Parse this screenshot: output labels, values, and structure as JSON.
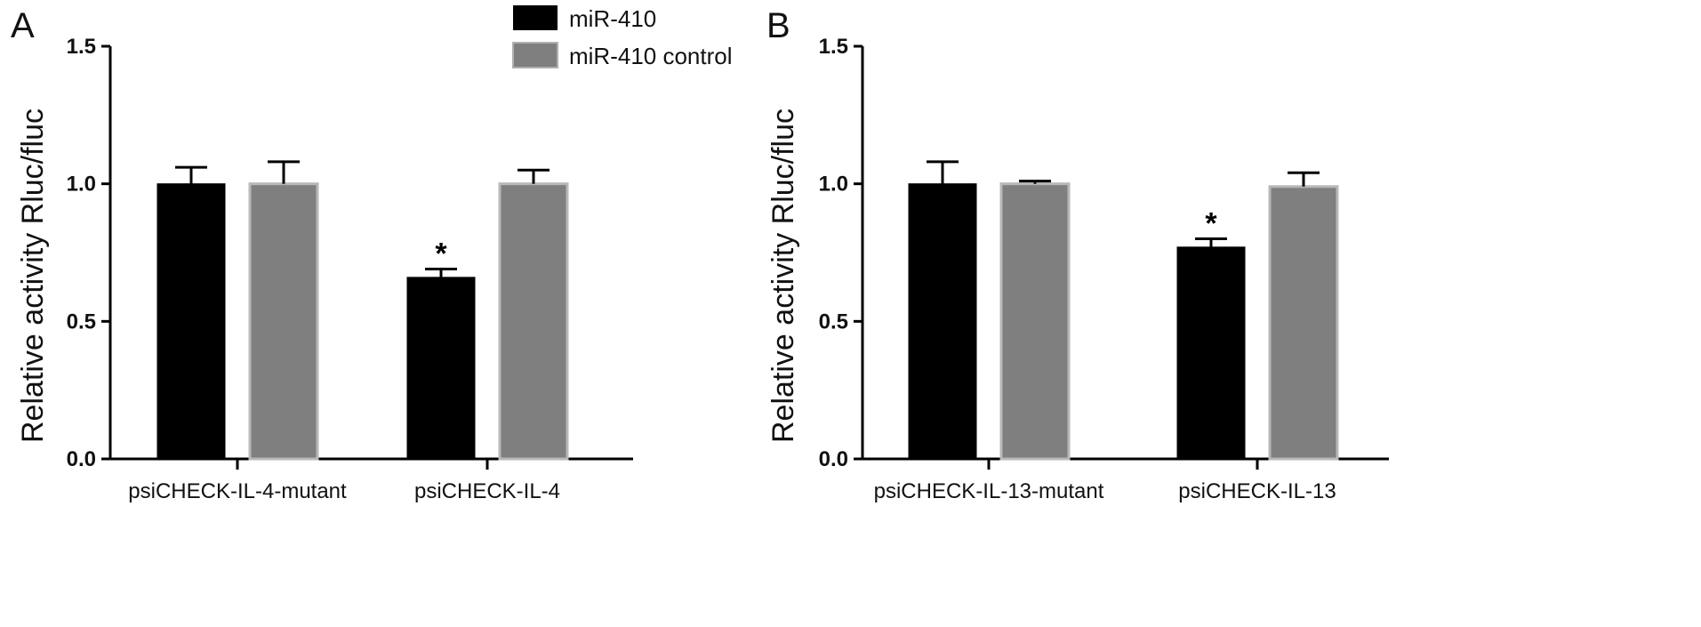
{
  "legend": [
    {
      "label": "miR-410",
      "color": "#000000"
    },
    {
      "label": "miR-410 control",
      "color": "#7f7f7f"
    }
  ],
  "chart_data": [
    {
      "type": "bar",
      "panel": "A",
      "ylabel": "Relative activity Rluc/fluc",
      "ylim": [
        0,
        1.5
      ],
      "yticks": [
        "0.0",
        "0.5",
        "1.0",
        "1.5"
      ],
      "categories": [
        "psiCHECK-IL-4-mutant",
        "psiCHECK-IL-4"
      ],
      "series": [
        {
          "name": "miR-410",
          "values": [
            1.0,
            0.66
          ],
          "errors": [
            0.06,
            0.03
          ],
          "color": "#000000"
        },
        {
          "name": "miR-410 control",
          "values": [
            1.0,
            1.0
          ],
          "errors": [
            0.08,
            0.05
          ],
          "color": "#7f7f7f"
        }
      ],
      "annotations": [
        {
          "text": "*",
          "series": 0,
          "category": 1
        }
      ]
    },
    {
      "type": "bar",
      "panel": "B",
      "ylabel": "Relative activity Rluc/fluc",
      "ylim": [
        0,
        1.5
      ],
      "yticks": [
        "0.0",
        "0.5",
        "1.0",
        "1.5"
      ],
      "categories": [
        "psiCHECK-IL-13-mutant",
        "psiCHECK-IL-13"
      ],
      "series": [
        {
          "name": "miR-410",
          "values": [
            1.0,
            0.77
          ],
          "errors": [
            0.08,
            0.03
          ],
          "color": "#000000"
        },
        {
          "name": "miR-410 control",
          "values": [
            1.0,
            0.99
          ],
          "errors": [
            0.01,
            0.05
          ],
          "color": "#7f7f7f"
        }
      ],
      "annotations": [
        {
          "text": "*",
          "series": 0,
          "category": 1
        }
      ]
    }
  ]
}
